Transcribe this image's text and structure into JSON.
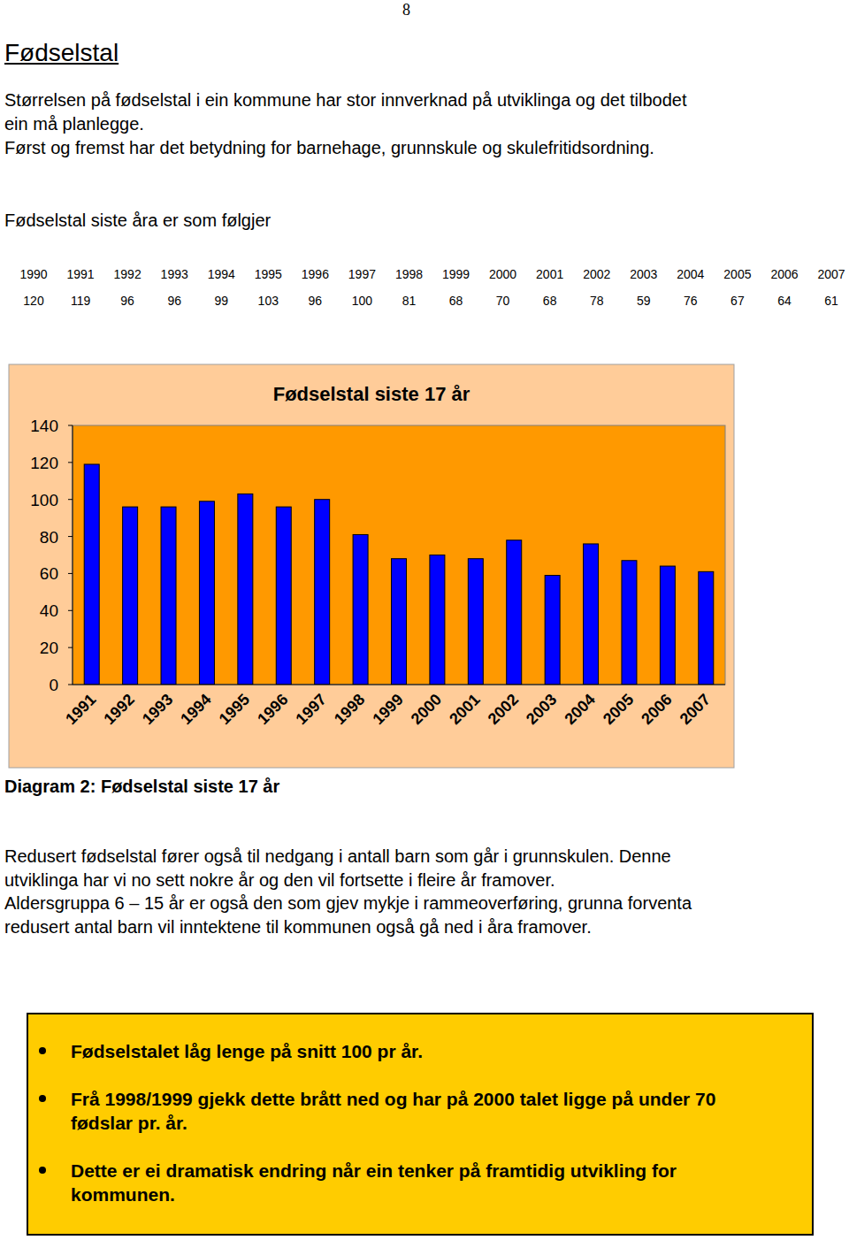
{
  "page_number": "8",
  "title": "Fødselstal",
  "intro_lines": [
    "Størrelsen på fødselstal i ein kommune har stor innverknad på utviklinga og det tilbodet",
    "ein må planlegge.",
    "Først og fremst har det betydning for barnehage, grunnskule og skulefritidsordning."
  ],
  "table_heading": "Fødselstal siste åra er som følgjer",
  "table": {
    "header": [
      1990,
      1991,
      1992,
      1993,
      1994,
      1995,
      1996,
      1997,
      1998,
      1999,
      2000,
      2001,
      2002,
      2003,
      2004,
      2005,
      2006,
      2007
    ],
    "rows": [
      [
        120,
        119,
        96,
        96,
        99,
        103,
        96,
        100,
        81,
        68,
        70,
        68,
        78,
        59,
        76,
        67,
        64,
        61
      ]
    ]
  },
  "chart_data": {
    "type": "bar",
    "title": "Fødselstal siste 17 år",
    "categories": [
      "1991",
      "1992",
      "1993",
      "1994",
      "1995",
      "1996",
      "1997",
      "1998",
      "1999",
      "2000",
      "2001",
      "2002",
      "2003",
      "2004",
      "2005",
      "2006",
      "2007"
    ],
    "values": [
      119,
      96,
      96,
      99,
      103,
      96,
      100,
      81,
      68,
      70,
      68,
      78,
      59,
      76,
      67,
      64,
      61
    ],
    "color": "#0000ff",
    "ylim": [
      0,
      140
    ],
    "yticks": [
      0,
      20,
      40,
      60,
      80,
      100,
      120,
      140
    ],
    "grid": false
  },
  "caption": "Diagram 2: Fødselstal siste 17 år",
  "body_lines": [
    "Redusert fødselstal fører også til nedgang i antall barn som går i grunnskulen. Denne",
    "utviklinga har vi no sett nokre år og den vil fortsette i fleire år framover.",
    "Aldersgruppa 6 – 15 år er også den som gjev mykje i rammeoverføring, grunna forventa",
    "redusert antal barn vil inntektene til kommunen også gå ned i åra framover."
  ],
  "summary": [
    {
      "lines": [
        "Fødselstalet låg lenge på snitt 100 pr år."
      ]
    },
    {
      "lines": [
        "Frå 1998/1999 gjekk dette brått ned og har på 2000 talet ligge på under 70",
        "fødslar pr. år."
      ]
    },
    {
      "lines": [
        "Dette er ei dramatisk endring når ein tenker på framtidig utvikling for",
        "kommunen."
      ]
    }
  ]
}
